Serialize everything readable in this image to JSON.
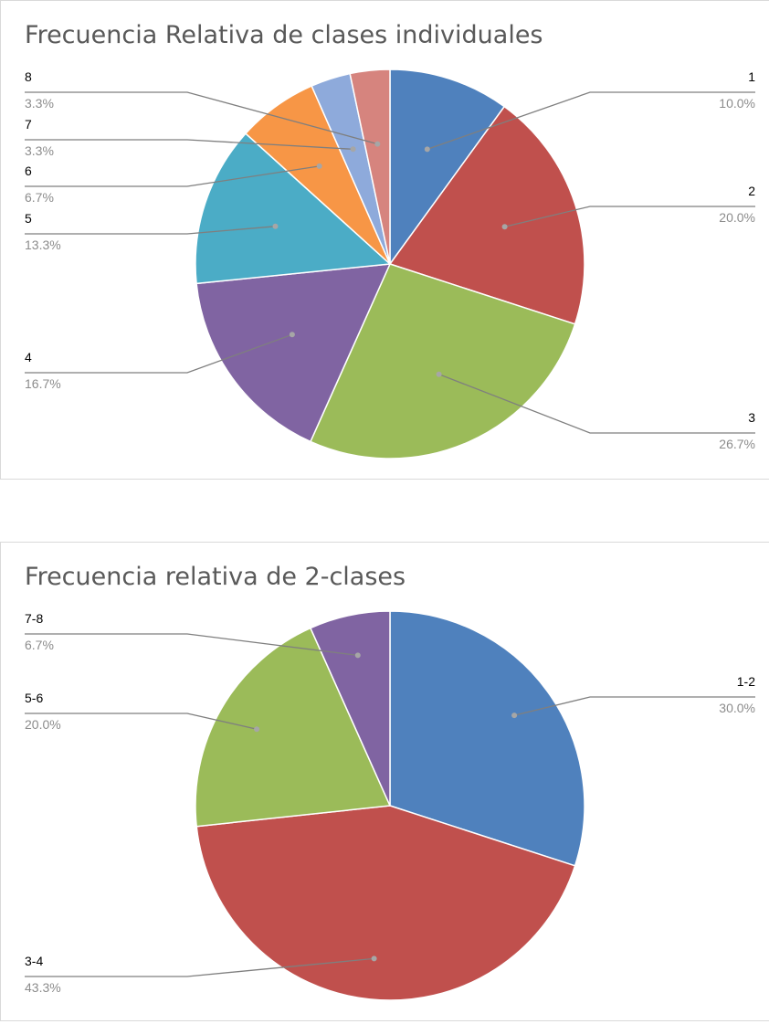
{
  "chart_data": [
    {
      "type": "pie",
      "title": "Frecuencia Relativa de clases individuales",
      "categories": [
        "1",
        "2",
        "3",
        "4",
        "5",
        "6",
        "7",
        "8"
      ],
      "values": [
        10.0,
        20.0,
        26.7,
        16.7,
        13.3,
        6.7,
        3.3,
        3.3
      ],
      "data_labels": [
        "10.0%",
        "20.0%",
        "26.7%",
        "16.7%",
        "13.3%",
        "6.7%",
        "3.3%",
        "3.3%"
      ],
      "colors": [
        "#4f81bd",
        "#c0504d",
        "#9bbb59",
        "#8064a2",
        "#4bacc6",
        "#f79646",
        "#8eaadb",
        "#d6847e"
      ],
      "legend": "none"
    },
    {
      "type": "pie",
      "title": "Frecuencia relativa de 2-clases",
      "categories": [
        "1-2",
        "3-4",
        "5-6",
        "7-8"
      ],
      "values": [
        30.0,
        43.3,
        20.0,
        6.7
      ],
      "data_labels": [
        "30.0%",
        "43.3%",
        "20.0%",
        "6.7%"
      ],
      "colors": [
        "#4f81bd",
        "#c0504d",
        "#9bbb59",
        "#8064a2"
      ],
      "legend": "none"
    }
  ]
}
